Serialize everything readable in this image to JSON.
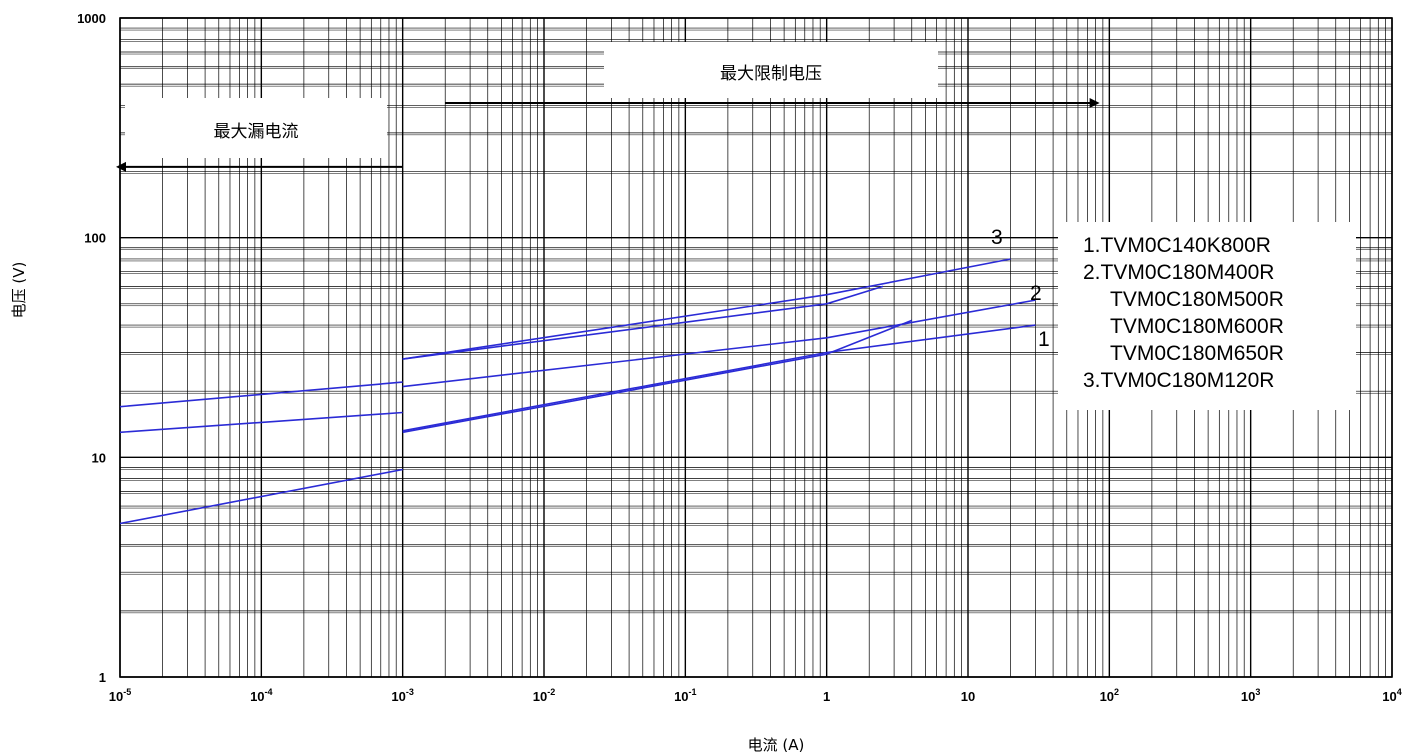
{
  "chart_data": {
    "type": "line",
    "title": "",
    "xlabel": "电流 (A)",
    "ylabel": "电压 (V)",
    "x_scale": "log",
    "y_scale": "log",
    "xlim": [
      1e-05,
      10000
    ],
    "ylim": [
      1,
      1000
    ],
    "grid": true,
    "x_ticks": [
      {
        "base": "10",
        "exp": "-5"
      },
      {
        "base": "10",
        "exp": "-4"
      },
      {
        "base": "10",
        "exp": "-3"
      },
      {
        "base": "10",
        "exp": "-2"
      },
      {
        "base": "10",
        "exp": "-1"
      },
      {
        "base": "1",
        "exp": ""
      },
      {
        "base": "10",
        "exp": ""
      },
      {
        "base": "10",
        "exp": "2"
      },
      {
        "base": "10",
        "exp": "3"
      },
      {
        "base": "10",
        "exp": "4"
      }
    ],
    "y_ticks": [
      "1",
      "10",
      "100",
      "1000"
    ],
    "series": [
      {
        "name": "1",
        "segments": [
          {
            "x": [
              1e-05,
              0.001
            ],
            "y": [
              5,
              8.8
            ]
          },
          {
            "x": [
              0.001,
              1,
              30
            ],
            "y": [
              13.2,
              30,
              40
            ]
          }
        ]
      },
      {
        "name": "2",
        "segments": [
          {
            "x": [
              1e-05,
              0.001
            ],
            "y": [
              13,
              16
            ]
          },
          {
            "x": [
              0.001,
              1,
              30
            ],
            "y": [
              21,
              35,
              52
            ]
          }
        ]
      },
      {
        "name": "3",
        "segments": [
          {
            "x": [
              1e-05,
              0.001
            ],
            "y": [
              17,
              22
            ]
          },
          {
            "x": [
              0.001,
              1,
              20
            ],
            "y": [
              28,
              55,
              80
            ]
          }
        ]
      },
      {
        "name": "",
        "segments": [
          {
            "x": [
              0.001,
              1,
              2.5
            ],
            "y": [
              28,
              50,
              60
            ]
          },
          {
            "x": [
              0.001,
              1,
              4
            ],
            "y": [
              13,
              29.5,
              42
            ]
          }
        ]
      }
    ],
    "annotations": [
      {
        "text": "最大漏电流",
        "arrow": "left",
        "x_from": 0.001,
        "x_to": 1e-05,
        "y": 210
      },
      {
        "text": "最大限制电压",
        "arrow": "right",
        "x_from": 0.002,
        "x_to": 80,
        "y": 410
      }
    ],
    "legend": {
      "position": "right",
      "lines": [
        "1.TVM0C140K800R",
        "2.TVM0C180M400R",
        "TVM0C180M500R",
        "TVM0C180M600R",
        "TVM0C180M650R",
        "3.TVM0C180M120R"
      ]
    },
    "colors": {
      "series": "#2b2bd6",
      "grid": "#000000",
      "arrow": "#000000"
    }
  }
}
